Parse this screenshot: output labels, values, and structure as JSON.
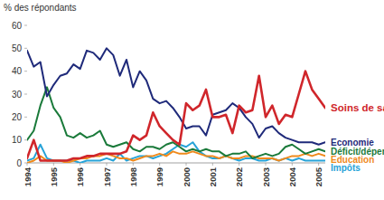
{
  "chart_data": {
    "type": "line",
    "y_label": "% des répondants",
    "x": [
      1994,
      1994.25,
      1994.5,
      1994.75,
      1995,
      1995.25,
      1995.5,
      1995.75,
      1996,
      1996.25,
      1996.5,
      1996.75,
      1997,
      1997.25,
      1997.5,
      1997.75,
      1998,
      1998.25,
      1998.5,
      1998.75,
      1999,
      1999.25,
      1999.5,
      1999.75,
      2000,
      2000.25,
      2000.5,
      2000.75,
      2001,
      2001.25,
      2001.5,
      2001.75,
      2002,
      2002.25,
      2002.5,
      2002.75,
      2003,
      2003.25,
      2003.5,
      2003.75,
      2004,
      2004.25,
      2004.5,
      2004.75,
      2005,
      2005.25
    ],
    "series": [
      {
        "name": "Soins de santé",
        "color": "#d0262b",
        "values": [
          2,
          10,
          1,
          1,
          1,
          1,
          1,
          2,
          2,
          3,
          3,
          4,
          4,
          4,
          4,
          5,
          12,
          10,
          12,
          22,
          16,
          13,
          10,
          8,
          26,
          23,
          25,
          32,
          20,
          20,
          21,
          13,
          25,
          22,
          23,
          38,
          20,
          25,
          17,
          21,
          20,
          30,
          40,
          32,
          28,
          24
        ]
      },
      {
        "name": "Economie",
        "color": "#1f2a7a",
        "values": [
          49,
          42,
          44,
          29,
          34,
          38,
          39,
          43,
          41,
          49,
          48,
          45,
          50,
          47,
          38,
          45,
          33,
          40,
          36,
          28,
          26,
          27,
          24,
          20,
          15,
          16,
          16,
          12,
          21,
          22,
          23,
          26,
          24,
          20,
          17,
          11,
          15,
          16,
          13,
          11,
          10,
          9,
          9,
          9,
          8,
          9
        ]
      },
      {
        "name": "Déficit/dépenses",
        "color": "#1a7a3a",
        "values": [
          10,
          14,
          25,
          33,
          24,
          20,
          12,
          11,
          13,
          11,
          12,
          14,
          8,
          7,
          8,
          9,
          6,
          5,
          7,
          7,
          6,
          8,
          9,
          7,
          5,
          6,
          5,
          6,
          5,
          5,
          3,
          4,
          4,
          5,
          2,
          3,
          4,
          3,
          4,
          7,
          8,
          6,
          4,
          5,
          6,
          5
        ]
      },
      {
        "name": "Education",
        "color": "#f08a1c",
        "values": [
          0,
          1,
          3,
          1,
          1,
          1,
          0,
          1,
          2,
          2,
          3,
          3,
          4,
          3,
          2,
          2,
          1,
          2,
          3,
          3,
          4,
          3,
          5,
          4,
          4,
          5,
          4,
          3,
          3,
          2,
          3,
          2,
          2,
          3,
          3,
          2,
          2,
          2,
          1,
          2,
          3,
          3,
          4,
          3,
          4,
          3
        ]
      },
      {
        "name": "Impôts",
        "color": "#27a3d8",
        "values": [
          1,
          2,
          8,
          2,
          1,
          1,
          1,
          1,
          0,
          1,
          1,
          1,
          2,
          1,
          4,
          1,
          2,
          3,
          3,
          2,
          3,
          4,
          6,
          8,
          7,
          9,
          5,
          3,
          2,
          2,
          3,
          2,
          1,
          2,
          2,
          1,
          1,
          2,
          1,
          2,
          1,
          2,
          1,
          1,
          1,
          1
        ]
      }
    ],
    "xlim": [
      1994,
      2005.25
    ],
    "xticks": [
      1994,
      1995,
      1996,
      1997,
      1998,
      1999,
      2000,
      2001,
      2002,
      2003,
      2004,
      2005
    ],
    "ylim": [
      0,
      60
    ],
    "yticks": [
      0,
      10,
      20,
      30,
      40,
      50,
      60
    ],
    "grid": false
  }
}
